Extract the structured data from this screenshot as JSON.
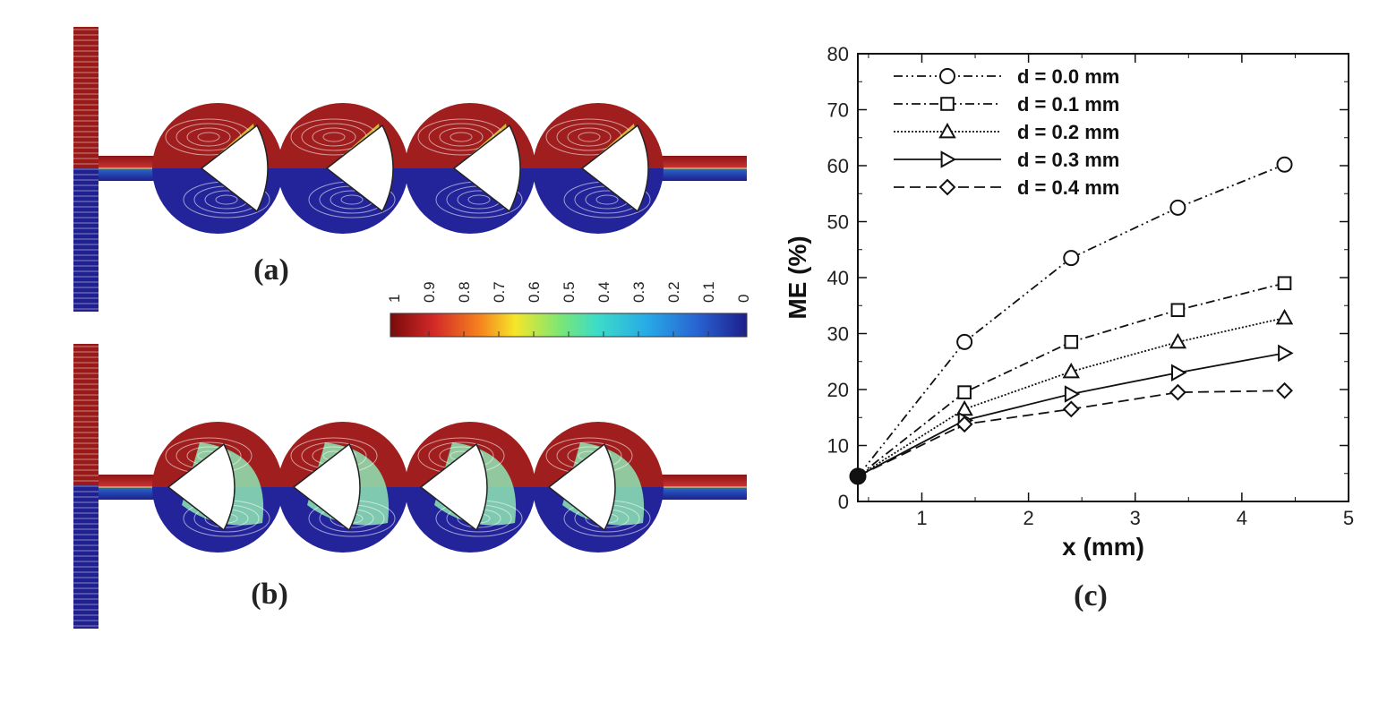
{
  "panels": {
    "a_label": "(a)",
    "b_label": "(b)",
    "c_label": "(c)"
  },
  "colorbar": {
    "ticks": [
      "1",
      "0.9",
      "0.8",
      "0.7",
      "0.6",
      "0.5",
      "0.4",
      "0.3",
      "0.2",
      "0.1",
      "0"
    ],
    "colors": [
      "#7a0a0a",
      "#c81e1e",
      "#f05a14",
      "#f5d21e",
      "#b4e650",
      "#50e6b4",
      "#28c8e6",
      "#2896e6",
      "#2850c8",
      "#1e1e96"
    ]
  },
  "chart_data": {
    "type": "line",
    "xlabel": "x (mm)",
    "ylabel": "ME (%)",
    "xlim": [
      0.4,
      5
    ],
    "ylim": [
      0,
      80
    ],
    "xticks": [
      "1",
      "2",
      "3",
      "4",
      "5"
    ],
    "yticks": [
      "0",
      "10",
      "20",
      "30",
      "40",
      "50",
      "60",
      "70",
      "80"
    ],
    "x": [
      0.4,
      1.4,
      2.4,
      3.4,
      4.4
    ],
    "series": [
      {
        "name": "d = 0.0 mm",
        "values": [
          4.5,
          28.5,
          43.5,
          52.5,
          60.2
        ],
        "marker": "circle",
        "dash": "10,4,2,4,2,4"
      },
      {
        "name": "d = 0.1 mm",
        "values": [
          4.5,
          19.5,
          28.5,
          34.2,
          39.0
        ],
        "marker": "square",
        "dash": "10,4,2,4"
      },
      {
        "name": "d = 0.2 mm",
        "values": [
          4.5,
          16.5,
          23.2,
          28.5,
          32.8
        ],
        "marker": "triangle",
        "dash": "2,2"
      },
      {
        "name": "d = 0.3 mm",
        "values": [
          4.5,
          14.5,
          19.2,
          23.0,
          26.5
        ],
        "marker": "triangle-right",
        "dash": ""
      },
      {
        "name": "d = 0.4 mm",
        "values": [
          4.5,
          13.8,
          16.5,
          19.5,
          19.8
        ],
        "marker": "diamond",
        "dash": "12,6"
      }
    ]
  }
}
